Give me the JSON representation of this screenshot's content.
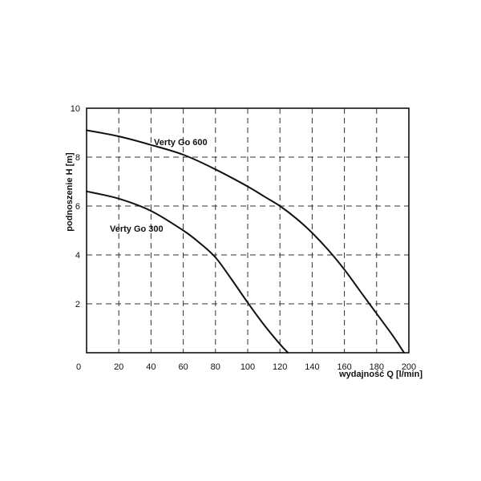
{
  "chart_data": {
    "type": "line",
    "title": "",
    "xlabel": "wydajność Q [l/min]",
    "ylabel": "podnoszenie H [m]",
    "xlim": [
      0,
      200
    ],
    "ylim": [
      0,
      10
    ],
    "x_ticks": [
      "0",
      "20",
      "40",
      "60",
      "80",
      "100",
      "120",
      "140",
      "160",
      "180",
      "200"
    ],
    "y_ticks": [
      "2",
      "4",
      "6",
      "8",
      "10"
    ],
    "grid": true,
    "series": [
      {
        "name": "Verty Go 600",
        "x": [
          0,
          20,
          40,
          60,
          80,
          100,
          110,
          120,
          130,
          140,
          150,
          160,
          170,
          180,
          190,
          197
        ],
        "y": [
          9.1,
          8.85,
          8.5,
          8.1,
          7.5,
          6.8,
          6.4,
          6.0,
          5.5,
          4.9,
          4.2,
          3.4,
          2.5,
          1.6,
          0.7,
          0.0
        ]
      },
      {
        "name": "Verty Go 300",
        "x": [
          0,
          20,
          40,
          60,
          70,
          80,
          90,
          100,
          110,
          120,
          125
        ],
        "y": [
          6.6,
          6.3,
          5.8,
          5.0,
          4.5,
          3.9,
          3.0,
          2.05,
          1.15,
          0.35,
          0.0
        ]
      }
    ],
    "annotations": [
      {
        "text": "Verty Go 600"
      },
      {
        "text": "Verty Go 300"
      }
    ]
  }
}
